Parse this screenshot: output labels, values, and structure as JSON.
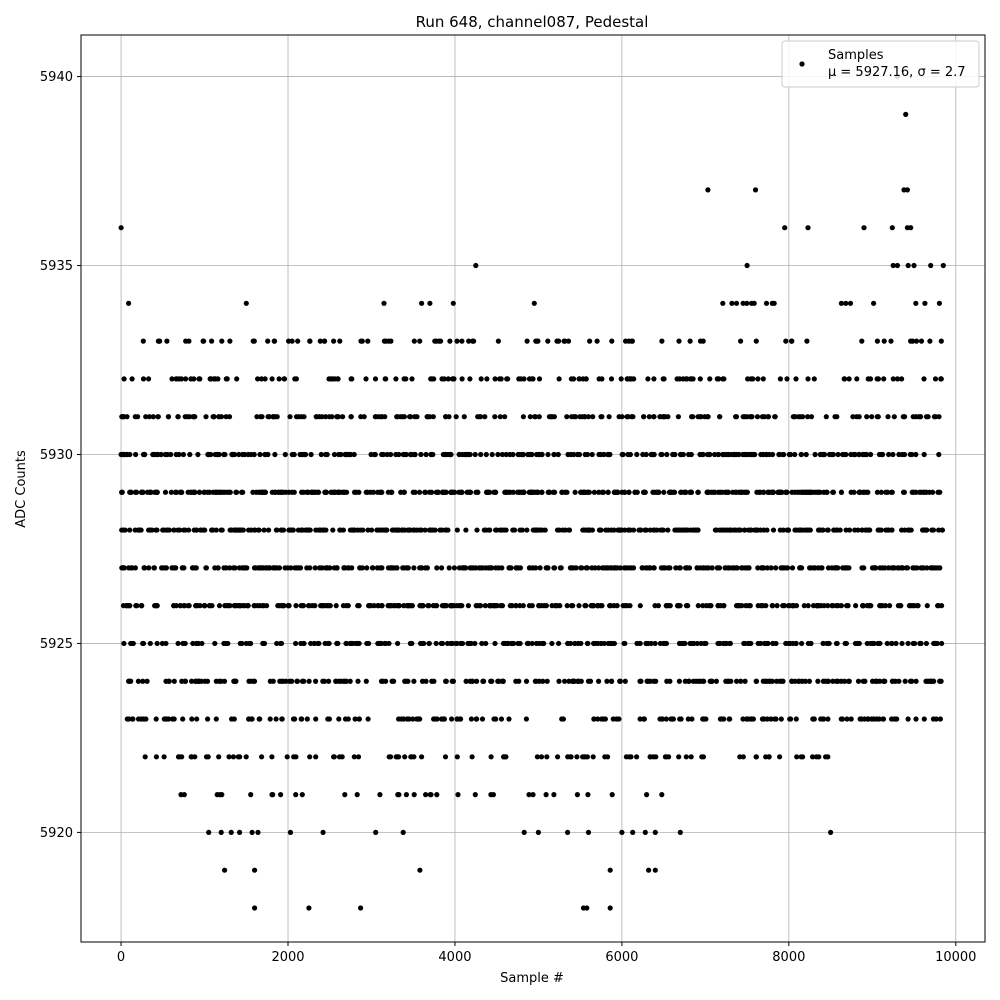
{
  "chart_data": {
    "type": "scatter",
    "title": "Run 648, channel087, Pedestal",
    "xlabel": "Sample #",
    "ylabel": "ADC Counts",
    "xlim": [
      -480,
      10350
    ],
    "ylim": [
      5917.1,
      5941.1
    ],
    "xticks": [
      0,
      2000,
      4000,
      6000,
      8000,
      10000
    ],
    "yticks": [
      5920,
      5925,
      5930,
      5935,
      5940
    ],
    "grid": true,
    "legend": {
      "placement": "top-right",
      "label": "Samples",
      "stats": "μ = 5927.16, σ = 2.7"
    },
    "series": [
      {
        "name": "Samples",
        "color": "#000000",
        "x_range": [
          0,
          9850
        ],
        "level_bands": [
          {
            "y": 5929,
            "ranges": [
              [
                0,
                9850
              ]
            ]
          },
          {
            "y": 5928,
            "ranges": [
              [
                0,
                9850
              ]
            ]
          },
          {
            "y": 5927,
            "ranges": [
              [
                0,
                9850
              ]
            ]
          },
          {
            "y": 5926,
            "ranges": [
              [
                0,
                9850
              ]
            ]
          },
          {
            "y": 5930,
            "ranges": [
              [
                0,
                9850
              ]
            ]
          },
          {
            "y": 5925,
            "ranges": [
              [
                0,
                9850
              ]
            ]
          },
          {
            "y": 5924,
            "ranges": [
              [
                80,
                9850
              ]
            ]
          },
          {
            "y": 5931,
            "ranges": [
              [
                0,
                9850
              ]
            ]
          },
          {
            "y": 5923,
            "ranges": [
              [
                60,
                9850
              ]
            ]
          },
          {
            "y": 5932,
            "ranges": [
              [
                0,
                9850
              ]
            ]
          },
          {
            "y": 5922,
            "ranges": [
              [
                150,
                8500
              ]
            ]
          },
          {
            "y": 5933,
            "ranges": [
              [
                90,
                9850
              ]
            ]
          },
          {
            "y": 5921,
            "ranges": [
              [
                700,
                6500
              ]
            ]
          },
          {
            "y": 5934,
            "ranges": [
              [
                6900,
                9850
              ]
            ]
          }
        ],
        "points": [
          [
            0,
            5936
          ],
          [
            90,
            5934
          ],
          [
            1500,
            5934
          ],
          [
            3150,
            5934
          ],
          [
            3600,
            5934
          ],
          [
            3700,
            5934
          ],
          [
            3980,
            5934
          ],
          [
            4950,
            5934
          ],
          [
            4250,
            5935
          ],
          [
            7500,
            5935
          ],
          [
            9250,
            5935
          ],
          [
            9300,
            5935
          ],
          [
            9430,
            5935
          ],
          [
            9500,
            5935
          ],
          [
            9700,
            5935
          ],
          [
            9850,
            5935
          ],
          [
            7950,
            5936
          ],
          [
            8230,
            5936
          ],
          [
            8900,
            5936
          ],
          [
            9240,
            5936
          ],
          [
            9420,
            5936
          ],
          [
            9460,
            5936
          ],
          [
            7030,
            5937
          ],
          [
            7600,
            5937
          ],
          [
            9380,
            5937
          ],
          [
            9420,
            5937
          ],
          [
            9400,
            5939
          ],
          [
            9300,
            5940
          ],
          [
            1050,
            5920
          ],
          [
            1200,
            5920
          ],
          [
            1320,
            5920
          ],
          [
            1420,
            5920
          ],
          [
            1570,
            5920
          ],
          [
            1640,
            5920
          ],
          [
            2030,
            5920
          ],
          [
            2420,
            5920
          ],
          [
            3050,
            5920
          ],
          [
            3380,
            5920
          ],
          [
            4830,
            5920
          ],
          [
            5000,
            5920
          ],
          [
            5350,
            5920
          ],
          [
            5600,
            5920
          ],
          [
            6000,
            5920
          ],
          [
            6130,
            5920
          ],
          [
            6280,
            5920
          ],
          [
            6400,
            5920
          ],
          [
            6700,
            5920
          ],
          [
            8500,
            5920
          ],
          [
            1240,
            5919
          ],
          [
            1600,
            5919
          ],
          [
            3580,
            5919
          ],
          [
            5860,
            5919
          ],
          [
            6320,
            5919
          ],
          [
            6400,
            5919
          ],
          [
            1600,
            5918
          ],
          [
            2250,
            5918
          ],
          [
            2870,
            5918
          ],
          [
            5540,
            5918
          ],
          [
            5580,
            5918
          ],
          [
            5860,
            5918
          ]
        ]
      }
    ]
  }
}
